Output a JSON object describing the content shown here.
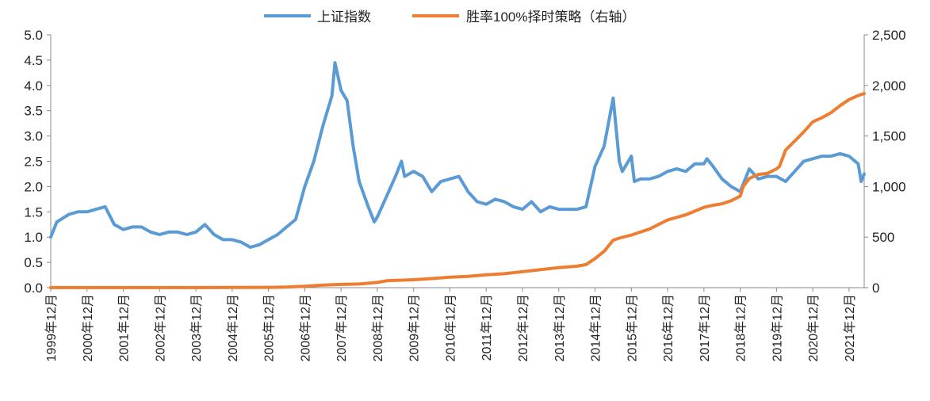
{
  "chart_data": {
    "type": "line",
    "title": "",
    "xlabel": "",
    "ylabel": "",
    "legend_position": "top",
    "grid": false,
    "colors": {
      "index": "#5b9bd5",
      "strategy": "#ed7d31"
    },
    "categories": [
      "1999年12月",
      "2000年12月",
      "2001年12月",
      "2002年12月",
      "2003年12月",
      "2004年12月",
      "2005年12月",
      "2006年12月",
      "2007年12月",
      "2008年12月",
      "2009年12月",
      "2010年12月",
      "2011年12月",
      "2012年12月",
      "2013年12月",
      "2014年12月",
      "2015年12月",
      "2016年12月",
      "2017年12月",
      "2018年12月",
      "2019年12月",
      "2020年12月",
      "2021年12月"
    ],
    "y_left": {
      "min": 0,
      "max": 5,
      "ticks": [
        "0.0",
        "0.5",
        "1.0",
        "1.5",
        "2.0",
        "2.5",
        "3.0",
        "3.5",
        "4.0",
        "4.5",
        "5.0"
      ]
    },
    "y_right": {
      "min": 0,
      "max": 2500,
      "ticks": [
        "0",
        "500",
        "1,000",
        "1,500",
        "2,000",
        "2,500"
      ]
    },
    "series": [
      {
        "name": "上证指数",
        "axis": "left",
        "color": "#5b9bd5",
        "points": [
          [
            "1999-12",
            1.0
          ],
          [
            "2000-02",
            1.3
          ],
          [
            "2000-06",
            1.45
          ],
          [
            "2000-09",
            1.5
          ],
          [
            "2000-12",
            1.5
          ],
          [
            "2001-03",
            1.55
          ],
          [
            "2001-06",
            1.6
          ],
          [
            "2001-09",
            1.25
          ],
          [
            "2001-12",
            1.15
          ],
          [
            "2002-03",
            1.2
          ],
          [
            "2002-06",
            1.2
          ],
          [
            "2002-09",
            1.1
          ],
          [
            "2002-12",
            1.05
          ],
          [
            "2003-03",
            1.1
          ],
          [
            "2003-06",
            1.1
          ],
          [
            "2003-09",
            1.05
          ],
          [
            "2003-12",
            1.1
          ],
          [
            "2004-03",
            1.25
          ],
          [
            "2004-06",
            1.05
          ],
          [
            "2004-09",
            0.95
          ],
          [
            "2004-12",
            0.95
          ],
          [
            "2005-03",
            0.9
          ],
          [
            "2005-06",
            0.8
          ],
          [
            "2005-09",
            0.85
          ],
          [
            "2005-12",
            0.95
          ],
          [
            "2006-03",
            1.05
          ],
          [
            "2006-06",
            1.2
          ],
          [
            "2006-09",
            1.35
          ],
          [
            "2006-12",
            2.0
          ],
          [
            "2007-03",
            2.5
          ],
          [
            "2007-06",
            3.2
          ],
          [
            "2007-09",
            3.8
          ],
          [
            "2007-10",
            4.45
          ],
          [
            "2007-12",
            3.9
          ],
          [
            "2008-02",
            3.7
          ],
          [
            "2008-04",
            2.8
          ],
          [
            "2008-06",
            2.1
          ],
          [
            "2008-09",
            1.6
          ],
          [
            "2008-11",
            1.3
          ],
          [
            "2008-12",
            1.4
          ],
          [
            "2009-03",
            1.8
          ],
          [
            "2009-06",
            2.2
          ],
          [
            "2009-08",
            2.5
          ],
          [
            "2009-09",
            2.2
          ],
          [
            "2009-12",
            2.3
          ],
          [
            "2010-03",
            2.2
          ],
          [
            "2010-06",
            1.9
          ],
          [
            "2010-09",
            2.1
          ],
          [
            "2010-12",
            2.15
          ],
          [
            "2011-03",
            2.2
          ],
          [
            "2011-06",
            1.9
          ],
          [
            "2011-09",
            1.7
          ],
          [
            "2011-12",
            1.65
          ],
          [
            "2012-03",
            1.75
          ],
          [
            "2012-06",
            1.7
          ],
          [
            "2012-09",
            1.6
          ],
          [
            "2012-12",
            1.55
          ],
          [
            "2013-03",
            1.7
          ],
          [
            "2013-06",
            1.5
          ],
          [
            "2013-09",
            1.6
          ],
          [
            "2013-12",
            1.55
          ],
          [
            "2014-03",
            1.55
          ],
          [
            "2014-06",
            1.55
          ],
          [
            "2014-09",
            1.6
          ],
          [
            "2014-12",
            2.4
          ],
          [
            "2015-03",
            2.8
          ],
          [
            "2015-06",
            3.75
          ],
          [
            "2015-08",
            2.5
          ],
          [
            "2015-09",
            2.3
          ],
          [
            "2015-12",
            2.6
          ],
          [
            "2016-01",
            2.1
          ],
          [
            "2016-03",
            2.15
          ],
          [
            "2016-06",
            2.15
          ],
          [
            "2016-09",
            2.2
          ],
          [
            "2016-12",
            2.3
          ],
          [
            "2017-03",
            2.35
          ],
          [
            "2017-06",
            2.3
          ],
          [
            "2017-09",
            2.45
          ],
          [
            "2017-12",
            2.45
          ],
          [
            "2018-01",
            2.55
          ],
          [
            "2018-03",
            2.4
          ],
          [
            "2018-06",
            2.15
          ],
          [
            "2018-09",
            2.0
          ],
          [
            "2018-12",
            1.9
          ],
          [
            "2019-03",
            2.35
          ],
          [
            "2019-06",
            2.15
          ],
          [
            "2019-09",
            2.2
          ],
          [
            "2019-12",
            2.2
          ],
          [
            "2020-03",
            2.1
          ],
          [
            "2020-06",
            2.3
          ],
          [
            "2020-09",
            2.5
          ],
          [
            "2020-12",
            2.55
          ],
          [
            "2021-03",
            2.6
          ],
          [
            "2021-06",
            2.6
          ],
          [
            "2021-09",
            2.65
          ],
          [
            "2021-12",
            2.6
          ],
          [
            "2022-03",
            2.45
          ],
          [
            "2022-04",
            2.1
          ],
          [
            "2022-05",
            2.25
          ]
        ]
      },
      {
        "name": "胜率100%择时策略（右轴）",
        "axis": "right",
        "color": "#ed7d31",
        "points": [
          [
            "1999-12",
            1
          ],
          [
            "2000-12",
            1
          ],
          [
            "2001-12",
            1
          ],
          [
            "2002-12",
            1
          ],
          [
            "2003-12",
            1
          ],
          [
            "2004-12",
            2
          ],
          [
            "2005-12",
            3
          ],
          [
            "2006-06",
            6
          ],
          [
            "2006-12",
            14
          ],
          [
            "2007-06",
            25
          ],
          [
            "2007-12",
            32
          ],
          [
            "2008-06",
            36
          ],
          [
            "2008-12",
            52
          ],
          [
            "2009-03",
            68
          ],
          [
            "2009-06",
            72
          ],
          [
            "2009-12",
            78
          ],
          [
            "2010-06",
            90
          ],
          [
            "2010-12",
            104
          ],
          [
            "2011-06",
            112
          ],
          [
            "2011-12",
            128
          ],
          [
            "2012-06",
            138
          ],
          [
            "2012-12",
            158
          ],
          [
            "2013-06",
            178
          ],
          [
            "2013-12",
            198
          ],
          [
            "2014-06",
            212
          ],
          [
            "2014-09",
            228
          ],
          [
            "2014-12",
            288
          ],
          [
            "2015-03",
            360
          ],
          [
            "2015-06",
            470
          ],
          [
            "2015-08",
            490
          ],
          [
            "2015-12",
            520
          ],
          [
            "2016-06",
            580
          ],
          [
            "2016-12",
            670
          ],
          [
            "2017-06",
            720
          ],
          [
            "2017-12",
            795
          ],
          [
            "2018-03",
            815
          ],
          [
            "2018-06",
            830
          ],
          [
            "2018-09",
            860
          ],
          [
            "2018-12",
            905
          ],
          [
            "2019-01",
            1000
          ],
          [
            "2019-03",
            1080
          ],
          [
            "2019-06",
            1120
          ],
          [
            "2019-09",
            1130
          ],
          [
            "2019-12",
            1175
          ],
          [
            "2020-01",
            1200
          ],
          [
            "2020-03",
            1360
          ],
          [
            "2020-06",
            1450
          ],
          [
            "2020-09",
            1540
          ],
          [
            "2020-12",
            1640
          ],
          [
            "2021-03",
            1680
          ],
          [
            "2021-06",
            1730
          ],
          [
            "2021-09",
            1800
          ],
          [
            "2021-12",
            1860
          ],
          [
            "2022-03",
            1900
          ],
          [
            "2022-05",
            1920
          ]
        ]
      }
    ]
  }
}
